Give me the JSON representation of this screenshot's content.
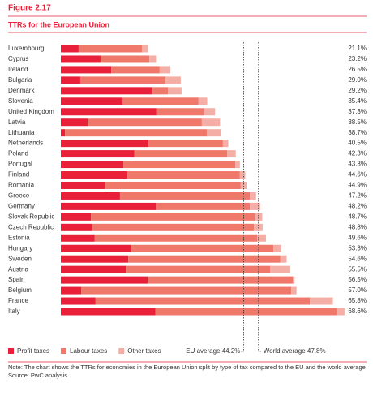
{
  "chart_data": {
    "type": "stacked_barh",
    "figure_label": "Figure 2.17",
    "title": "TTRs for the European Union",
    "categories": [
      "Luxembourg",
      "Cyprus",
      "Ireland",
      "Bulgaria",
      "Denmark",
      "Slovenia",
      "United Kingdom",
      "Latvia",
      "Lithuania",
      "Netherlands",
      "Poland",
      "Portugal",
      "Finland",
      "Romania",
      "Greece",
      "Germany",
      "Slovak Republic",
      "Czech Republic",
      "Estonia",
      "Hungary",
      "Sweden",
      "Austria",
      "Spain",
      "Belgium",
      "France",
      "Italy"
    ],
    "series": [
      {
        "name": "Profit taxes",
        "color": "#e8203a",
        "values": [
          4.3,
          9.6,
          12.2,
          4.7,
          22.2,
          14.9,
          23.3,
          6.5,
          1.0,
          21.2,
          17.8,
          15.1,
          16.1,
          10.6,
          14.3,
          23.1,
          7.3,
          7.6,
          8.2,
          16.9,
          16.3,
          15.9,
          21.0,
          4.9,
          8.4,
          22.9
        ]
      },
      {
        "name": "Labour taxes",
        "color": "#f0786b",
        "values": [
          15.3,
          11.8,
          11.7,
          20.6,
          3.7,
          18.4,
          11.4,
          27.6,
          34.3,
          18.0,
          22.4,
          27.1,
          27.2,
          32.9,
          31.4,
          22.6,
          39.6,
          39.1,
          39.3,
          34.5,
          36.8,
          34.7,
          35.1,
          50.8,
          51.8,
          43.8
        ]
      },
      {
        "name": "Other taxes",
        "color": "#f5aea5",
        "values": [
          1.5,
          1.8,
          2.6,
          3.7,
          3.3,
          2.1,
          2.6,
          4.4,
          3.4,
          1.3,
          2.1,
          1.1,
          1.3,
          1.4,
          1.5,
          2.5,
          1.8,
          2.1,
          2.1,
          1.9,
          1.5,
          4.9,
          0.4,
          1.3,
          5.6,
          1.9
        ]
      }
    ],
    "total_labels": [
      "21.1%",
      "23.2%",
      "26.5%",
      "29.0%",
      "29.2%",
      "35.4%",
      "37.3%",
      "38.5%",
      "38.7%",
      "40.5%",
      "42.3%",
      "43.3%",
      "44.6%",
      "44.9%",
      "47.2%",
      "48.2%",
      "48.7%",
      "48.8%",
      "49.6%",
      "53.3%",
      "54.6%",
      "55.5%",
      "56.5%",
      "57.0%",
      "65.8%",
      "68.6%"
    ],
    "xlim": [
      0,
      70
    ],
    "reference_lines": [
      {
        "value": 44.2,
        "label": "EU average 44.2%",
        "side": "left"
      },
      {
        "value": 47.8,
        "label": "World average 47.8%",
        "side": "right"
      }
    ],
    "note": "Note: The chart shows the TTRs for economies in the European Union split by type of tax compared to the EU and the world average",
    "source": "Source: PwC analysis"
  }
}
